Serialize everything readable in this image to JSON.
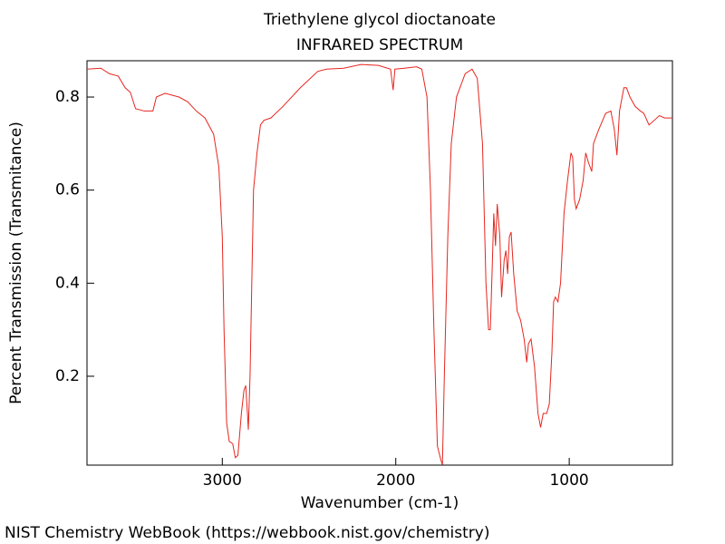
{
  "chart_data": {
    "type": "line",
    "title": "Triethylene glycol dioctanoate",
    "subtitle": "INFRARED SPECTRUM",
    "xlabel": "Wavenumber (cm-1)",
    "ylabel": "Percent Transmission (Transmitance)",
    "footer": "NIST Chemistry WebBook (https://webbook.nist.gov/chemistry)",
    "color": "#e6261f",
    "xlim": [
      3780,
      405
    ],
    "xticks": [
      3000,
      2000,
      1000
    ],
    "ylim": [
      0.009,
      0.878
    ],
    "yticks": [
      0.2,
      0.4,
      0.6,
      0.8
    ],
    "x": [
      3780,
      3700,
      3650,
      3600,
      3560,
      3530,
      3500,
      3450,
      3400,
      3380,
      3330,
      3250,
      3200,
      3150,
      3100,
      3050,
      3020,
      3000,
      2990,
      2975,
      2960,
      2940,
      2925,
      2910,
      2890,
      2875,
      2865,
      2855,
      2850,
      2840,
      2820,
      2800,
      2780,
      2760,
      2720,
      2650,
      2550,
      2450,
      2400,
      2300,
      2200,
      2100,
      2030,
      2015,
      2005,
      1950,
      1880,
      1850,
      1820,
      1800,
      1780,
      1760,
      1740,
      1731,
      1720,
      1700,
      1680,
      1650,
      1600,
      1560,
      1530,
      1500,
      1480,
      1465,
      1455,
      1445,
      1435,
      1425,
      1415,
      1400,
      1390,
      1375,
      1365,
      1355,
      1345,
      1335,
      1320,
      1300,
      1280,
      1260,
      1245,
      1235,
      1220,
      1200,
      1180,
      1165,
      1150,
      1130,
      1115,
      1100,
      1090,
      1080,
      1065,
      1050,
      1030,
      1010,
      990,
      980,
      970,
      960,
      940,
      920,
      905,
      890,
      870,
      860,
      830,
      790,
      760,
      740,
      725,
      710,
      700,
      685,
      670,
      650,
      620,
      590,
      570,
      540,
      510,
      480,
      450,
      405
    ],
    "values": [
      0.86,
      0.862,
      0.85,
      0.845,
      0.82,
      0.81,
      0.775,
      0.77,
      0.77,
      0.8,
      0.808,
      0.8,
      0.79,
      0.77,
      0.755,
      0.72,
      0.65,
      0.5,
      0.3,
      0.1,
      0.06,
      0.055,
      0.025,
      0.03,
      0.12,
      0.17,
      0.18,
      0.12,
      0.085,
      0.2,
      0.6,
      0.68,
      0.74,
      0.75,
      0.755,
      0.78,
      0.82,
      0.855,
      0.86,
      0.862,
      0.87,
      0.868,
      0.86,
      0.815,
      0.86,
      0.862,
      0.865,
      0.86,
      0.8,
      0.6,
      0.3,
      0.05,
      0.02,
      0.01,
      0.2,
      0.5,
      0.7,
      0.8,
      0.85,
      0.86,
      0.84,
      0.7,
      0.4,
      0.3,
      0.3,
      0.42,
      0.55,
      0.48,
      0.57,
      0.5,
      0.37,
      0.45,
      0.47,
      0.42,
      0.5,
      0.51,
      0.42,
      0.34,
      0.32,
      0.28,
      0.23,
      0.27,
      0.28,
      0.22,
      0.12,
      0.09,
      0.12,
      0.12,
      0.14,
      0.25,
      0.36,
      0.37,
      0.36,
      0.4,
      0.55,
      0.62,
      0.68,
      0.67,
      0.58,
      0.56,
      0.58,
      0.62,
      0.68,
      0.66,
      0.64,
      0.7,
      0.73,
      0.765,
      0.77,
      0.73,
      0.675,
      0.77,
      0.79,
      0.82,
      0.82,
      0.8,
      0.78,
      0.77,
      0.765,
      0.74,
      0.75,
      0.76,
      0.755,
      0.755
    ]
  }
}
